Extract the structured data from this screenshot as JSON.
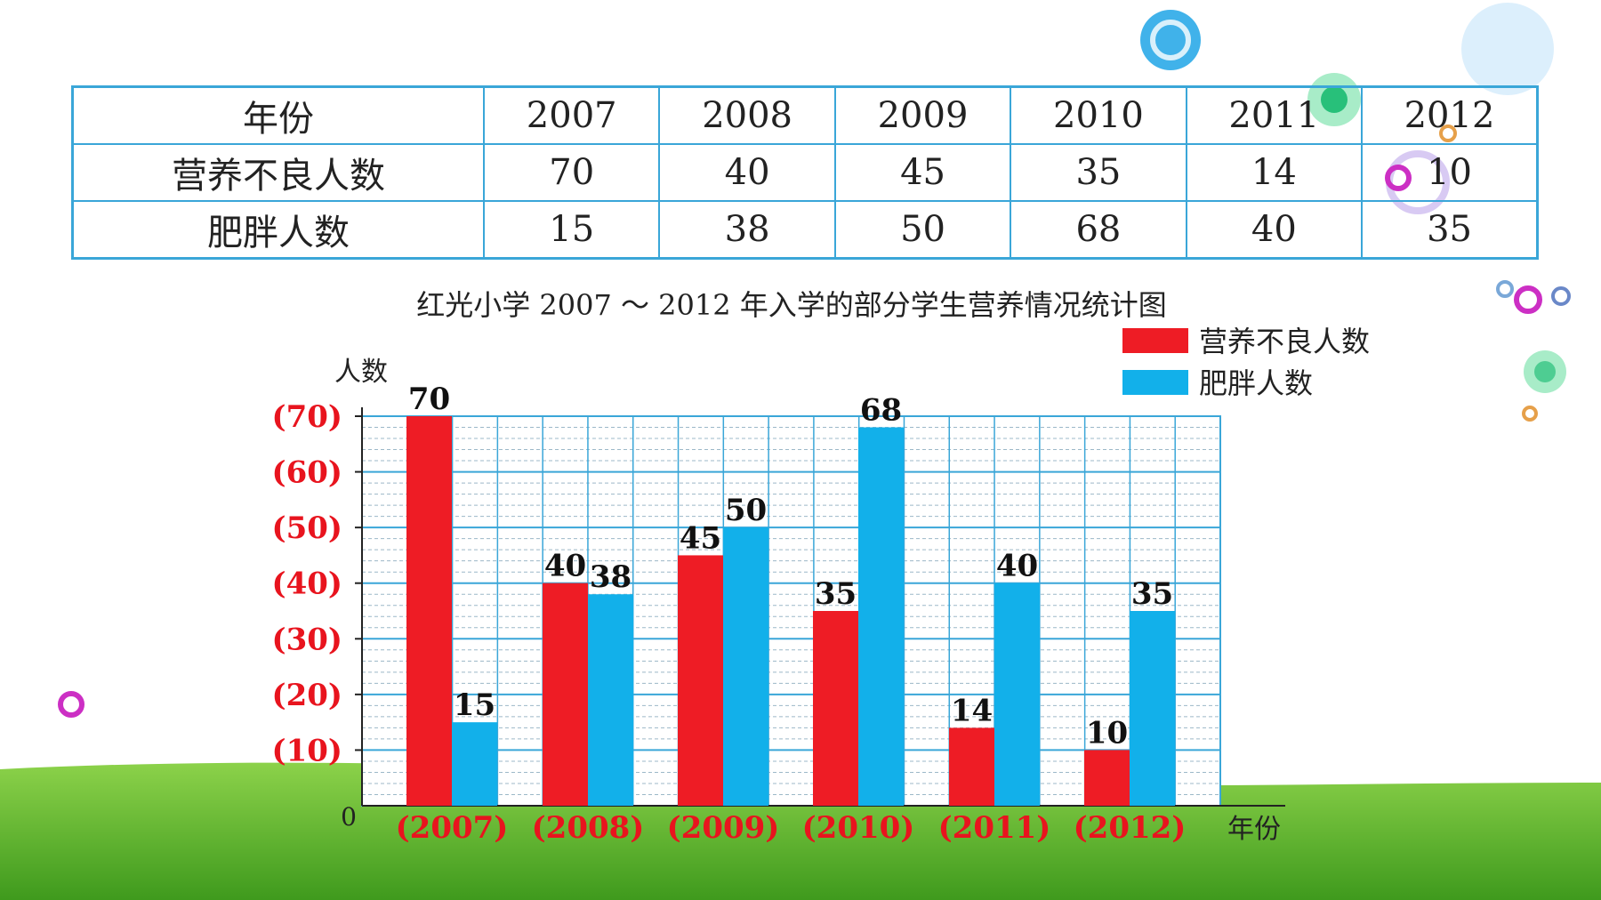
{
  "table": {
    "header_label": "年份",
    "rows": [
      {
        "label": "营养不良人数",
        "values": [
          "70",
          "40",
          "45",
          "35",
          "14",
          "10"
        ]
      },
      {
        "label": "肥胖人数",
        "values": [
          "15",
          "38",
          "50",
          "68",
          "40",
          "35"
        ]
      }
    ],
    "years": [
      "2007",
      "2008",
      "2009",
      "2010",
      "2011",
      "2012"
    ]
  },
  "chart_data": {
    "type": "bar",
    "title": "红光小学 2007 ～ 2012 年入学的部分学生营养情况统计图",
    "categories": [
      "(2007)",
      "(2008)",
      "(2009)",
      "(2010)",
      "(2011)",
      "(2012)"
    ],
    "series": [
      {
        "name": "营养不良人数",
        "color": "#ee1c25",
        "values": [
          70,
          40,
          45,
          35,
          14,
          10
        ]
      },
      {
        "name": "肥胖人数",
        "color": "#12b0ea",
        "values": [
          15,
          38,
          50,
          68,
          40,
          35
        ]
      }
    ],
    "ylabel": "人数",
    "xlabel": "年份",
    "yticks": [
      "(10)",
      "(20)",
      "(30)",
      "(40)",
      "(50)",
      "(60)",
      "(70)"
    ],
    "zero_label": "0",
    "ylim": [
      0,
      70
    ],
    "grid": true,
    "legend": "top-right"
  }
}
